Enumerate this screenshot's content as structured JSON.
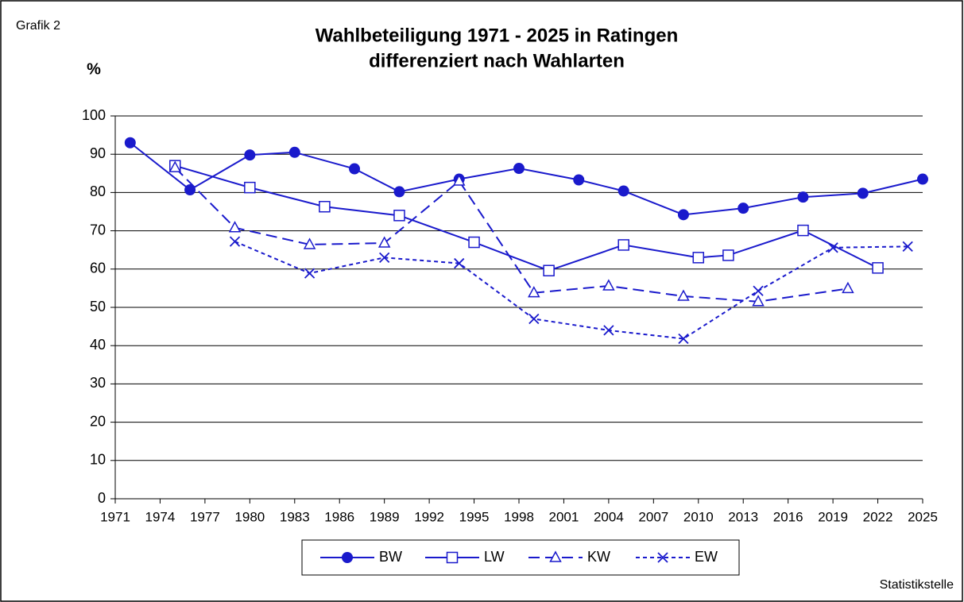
{
  "label": "Grafik 2",
  "source": "Statistikstelle",
  "chart_data": {
    "type": "line",
    "title": "Wahlbeteiligung 1971 - 2025 in Ratingen",
    "subtitle": "differenziert nach Wahlarten",
    "y_label": "%",
    "xlim": [
      1971,
      2025
    ],
    "xticks": [
      1971,
      1974,
      1977,
      1980,
      1983,
      1986,
      1989,
      1992,
      1995,
      1998,
      2001,
      2004,
      2007,
      2010,
      2013,
      2016,
      2019,
      2022,
      2025
    ],
    "ylim": [
      0,
      100
    ],
    "yticks": [
      0,
      10,
      20,
      30,
      40,
      50,
      60,
      70,
      80,
      90,
      100
    ],
    "grid": true,
    "legend": "bottom",
    "series": [
      {
        "name": "BW",
        "color": "#1a1acc",
        "marker": "circle",
        "dash": "solid",
        "x": [
          1972,
          1976,
          1980,
          1983,
          1987,
          1990,
          1994,
          1998,
          2002,
          2005,
          2009,
          2013,
          2017,
          2021,
          2025
        ],
        "values": [
          93,
          80.7,
          89.8,
          90.5,
          86.2,
          80.2,
          83.5,
          86.3,
          83.3,
          80.4,
          74.2,
          75.9,
          78.8,
          79.8,
          83.5
        ]
      },
      {
        "name": "LW",
        "color": "#1a1acc",
        "marker": "square",
        "dash": "solid",
        "x": [
          1975,
          1980,
          1985,
          1990,
          1995,
          2000,
          2005,
          2010,
          2012,
          2017,
          2022
        ],
        "values": [
          87,
          81.3,
          76.3,
          74,
          67,
          59.6,
          66.3,
          63,
          63.6,
          70.1,
          60.3
        ]
      },
      {
        "name": "KW",
        "color": "#1a1acc",
        "marker": "triangle",
        "dash": "long",
        "x": [
          1975,
          1979,
          1984,
          1989,
          1994,
          1999,
          2004,
          2009,
          2014,
          2020
        ],
        "values": [
          86.5,
          70.8,
          66.4,
          66.8,
          83,
          53.8,
          55.6,
          52.9,
          51.5,
          54.9
        ]
      },
      {
        "name": "EW",
        "color": "#1a1acc",
        "marker": "cross",
        "dash": "short",
        "x": [
          1979,
          1984,
          1989,
          1994,
          1999,
          2004,
          2009,
          2014,
          2019,
          2024
        ],
        "values": [
          67.2,
          58.9,
          63,
          61.5,
          47,
          44,
          41.8,
          54.3,
          65.6,
          65.9
        ]
      }
    ]
  }
}
